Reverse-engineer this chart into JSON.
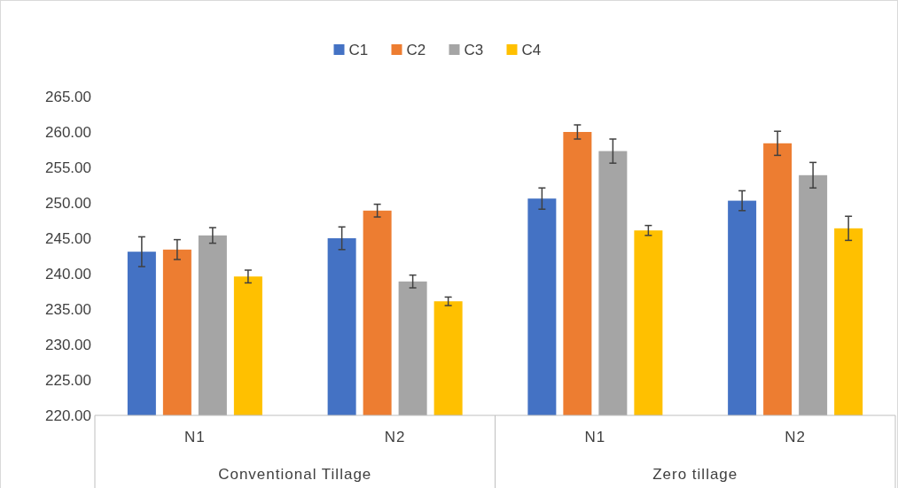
{
  "chart_data": {
    "type": "bar",
    "categories": [
      "N1",
      "N2",
      "N1",
      "N2"
    ],
    "series": [
      {
        "name": "C1",
        "color": "#4472c4",
        "values": [
          243.1,
          245.0,
          250.6,
          250.3
        ],
        "errors": [
          2.1,
          1.6,
          1.5,
          1.4
        ]
      },
      {
        "name": "C2",
        "color": "#ed7d31",
        "values": [
          243.4,
          248.9,
          260.0,
          258.4
        ],
        "errors": [
          1.4,
          0.9,
          1.0,
          1.7
        ]
      },
      {
        "name": "C3",
        "color": "#a5a5a5",
        "values": [
          245.4,
          238.9,
          257.3,
          253.9
        ],
        "errors": [
          1.1,
          0.9,
          1.7,
          1.8
        ]
      },
      {
        "name": "C4",
        "color": "#ffc000",
        "values": [
          239.6,
          236.1,
          246.1,
          246.4
        ],
        "errors": [
          0.9,
          0.6,
          0.7,
          1.7
        ]
      }
    ],
    "annotations": [
      "Conventional Tillage",
      "Zero tillage"
    ],
    "ylim": [
      220,
      265
    ],
    "yticks": [
      {
        "value": 220,
        "label": "220.00"
      },
      {
        "value": 225,
        "label": "225.00"
      },
      {
        "value": 230,
        "label": "230.00"
      },
      {
        "value": 235,
        "label": "235.00"
      },
      {
        "value": 240,
        "label": "240.00"
      },
      {
        "value": 245,
        "label": "245.00"
      },
      {
        "value": 250,
        "label": "250.00"
      },
      {
        "value": 255,
        "label": "255.00"
      },
      {
        "value": 260,
        "label": "260.00"
      },
      {
        "value": 265,
        "label": "265.00"
      }
    ],
    "grid": false,
    "legend": "top"
  }
}
